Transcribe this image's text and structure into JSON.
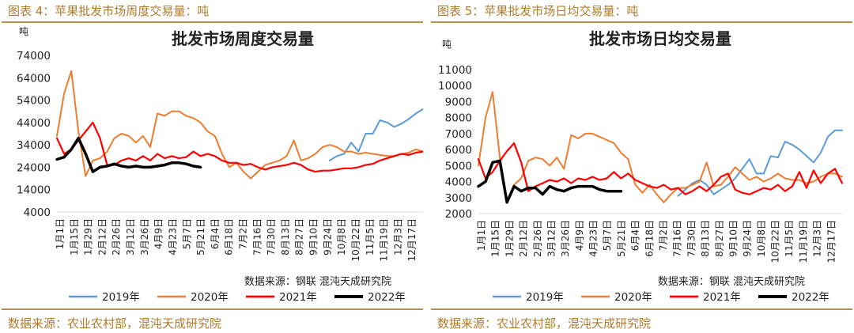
{
  "figures": [
    {
      "caption": "图表 4：苹果批发市场周度交易量：吨",
      "footer_source": "数据来源：农业农村部，混沌天成研究院",
      "inner_source": "数据来源：钢联   混沌天成研究院"
    },
    {
      "caption": "图表 5：苹果批发市场日均交易量：吨",
      "footer_source": "数据来源：农业农村部，混沌天成研究院",
      "inner_source": "数据来源：钢联   混沌天成研究院"
    }
  ],
  "chart_data": [
    {
      "type": "line",
      "title": "批发市场周度交易量",
      "unit_label": "吨",
      "ylim": [
        4000,
        74000
      ],
      "yticks": [
        "4000",
        "14000",
        "24000",
        "34000",
        "44000",
        "54000",
        "64000",
        "74000"
      ],
      "ytick_values": [
        4000,
        14000,
        24000,
        34000,
        44000,
        54000,
        64000,
        74000
      ],
      "xlim": [
        1,
        52
      ],
      "xticks": [
        "1月1日",
        "1月15日",
        "1月29日",
        "2月12日",
        "2月26日",
        "3月12日",
        "3月26日",
        "4月9日",
        "4月23日",
        "5月7日",
        "5月21日",
        "6月4日",
        "6月18日",
        "7月2日",
        "7月16日",
        "7月30日",
        "8月13日",
        "8月27日",
        "9月10日",
        "9月24日",
        "10月8日",
        "10月22日",
        "11月5日",
        "11月19日",
        "12月3日",
        "12月17日"
      ],
      "grid": false,
      "legend_position": "bottom",
      "series": [
        {
          "name": "2019年",
          "color": "#5b9bd5",
          "width": 2,
          "x": [
            39,
            40,
            41,
            42,
            43,
            44,
            45,
            46,
            47,
            48,
            49,
            50,
            51,
            52
          ],
          "y": [
            27000,
            29000,
            30000,
            35000,
            31000,
            39000,
            39000,
            45000,
            44000,
            42000,
            43500,
            45500,
            48000,
            50000
          ]
        },
        {
          "name": "2020年",
          "color": "#ed7d31",
          "width": 2,
          "x": [
            1,
            2,
            3,
            4,
            5,
            6,
            7,
            8,
            9,
            10,
            11,
            12,
            13,
            14,
            15,
            16,
            17,
            18,
            19,
            20,
            21,
            22,
            23,
            24,
            25,
            26,
            27,
            28,
            29,
            30,
            31,
            32,
            33,
            34,
            35,
            36,
            37,
            38,
            39,
            40,
            41,
            42,
            43,
            44,
            45,
            46,
            47,
            48,
            49,
            50,
            51,
            52
          ],
          "y": [
            38000,
            57000,
            67000,
            40000,
            20000,
            27000,
            28000,
            31000,
            37000,
            39000,
            38000,
            35000,
            38000,
            33000,
            48000,
            47000,
            49000,
            49000,
            47000,
            46000,
            44000,
            40000,
            38000,
            30000,
            24000,
            26000,
            22000,
            19000,
            22000,
            25000,
            26000,
            27000,
            29000,
            36000,
            27000,
            28000,
            30000,
            33000,
            34000,
            33000,
            31000,
            31000,
            30000,
            30500,
            30000,
            29500,
            29000,
            29000,
            30000,
            30500,
            32000,
            31000
          ]
        },
        {
          "name": "2021年",
          "color": "#ff0000",
          "width": 2.2,
          "x": [
            1,
            2,
            3,
            4,
            5,
            6,
            7,
            8,
            9,
            10,
            11,
            12,
            13,
            14,
            15,
            16,
            17,
            18,
            19,
            20,
            21,
            22,
            23,
            24,
            25,
            26,
            27,
            28,
            29,
            30,
            31,
            32,
            33,
            34,
            35,
            36,
            37,
            38,
            39,
            40,
            41,
            42,
            43,
            44,
            45,
            46,
            47,
            48,
            49,
            50,
            51,
            52
          ],
          "y": [
            37000,
            30000,
            32000,
            36000,
            40000,
            44000,
            37000,
            25000,
            25000,
            27000,
            28000,
            27000,
            29000,
            27000,
            30000,
            28000,
            29000,
            28000,
            28500,
            31000,
            29000,
            30000,
            29000,
            27000,
            26000,
            26000,
            25000,
            25500,
            24000,
            23000,
            24000,
            24500,
            25000,
            26000,
            25000,
            23000,
            22000,
            22500,
            22500,
            23000,
            23500,
            23500,
            24000,
            25000,
            25500,
            27000,
            28000,
            29000,
            30000,
            29500,
            30500,
            31000
          ]
        },
        {
          "name": "2022年",
          "color": "#000000",
          "width": 3.5,
          "x": [
            1,
            2,
            3,
            4,
            5,
            6,
            7,
            8,
            9,
            10,
            11,
            12,
            13,
            14,
            15,
            16,
            17,
            18,
            19,
            20,
            21
          ],
          "y": [
            27500,
            28500,
            32000,
            37000,
            30000,
            22000,
            24000,
            24500,
            25500,
            24500,
            24000,
            24500,
            24000,
            24000,
            24500,
            25000,
            26000,
            26000,
            25500,
            24500,
            24000
          ]
        }
      ]
    },
    {
      "type": "line",
      "title": "批发市场日均交易量",
      "unit_label": "吨",
      "ylim": [
        2000,
        11000
      ],
      "yticks": [
        "2000",
        "3000",
        "4000",
        "5000",
        "6000",
        "7000",
        "8000",
        "9000",
        "10000",
        "11000"
      ],
      "ytick_values": [
        2000,
        3000,
        4000,
        5000,
        6000,
        7000,
        8000,
        9000,
        10000,
        11000
      ],
      "xlim": [
        1,
        52
      ],
      "xticks": [
        "1月1日",
        "1月15日",
        "1月29日",
        "2月12日",
        "2月26日",
        "3月12日",
        "3月26日",
        "4月9日",
        "4月23日",
        "5月7日",
        "5月21日",
        "6月4日",
        "6月18日",
        "7月2日",
        "7月16日",
        "7月30日",
        "8月13日",
        "8月27日",
        "9月10日",
        "9月24日",
        "10月8日",
        "10月22日",
        "11月5日",
        "11月19日",
        "12月3日",
        "12月17日"
      ],
      "grid": false,
      "legend_position": "bottom",
      "series": [
        {
          "name": "2019年",
          "color": "#5b9bd5",
          "width": 2,
          "x": [
            29,
            30,
            31,
            32,
            33,
            34,
            35,
            36,
            37,
            38,
            39,
            40,
            41,
            42,
            43,
            44,
            45,
            46,
            47,
            48,
            49,
            50,
            51,
            52
          ],
          "y": [
            3100,
            3500,
            3900,
            4100,
            3800,
            3200,
            3500,
            3800,
            4200,
            4800,
            5400,
            4500,
            4500,
            5600,
            5500,
            6500,
            6300,
            6000,
            5600,
            5200,
            5800,
            6800,
            7200,
            7200
          ]
        },
        {
          "name": "2020年",
          "color": "#ed7d31",
          "width": 2,
          "x": [
            1,
            2,
            3,
            4,
            5,
            6,
            7,
            8,
            9,
            10,
            11,
            12,
            13,
            14,
            15,
            16,
            17,
            18,
            19,
            20,
            21,
            22,
            23,
            24,
            25,
            26,
            27,
            28,
            29,
            30,
            31,
            32,
            33,
            34,
            35,
            36,
            37,
            38,
            39,
            40,
            41,
            42,
            43,
            44,
            45,
            46,
            47,
            48,
            49,
            50,
            51,
            52
          ],
          "y": [
            5000,
            8000,
            9600,
            5500,
            2800,
            3800,
            4200,
            5300,
            5500,
            5400,
            5000,
            5500,
            4800,
            6900,
            6700,
            7000,
            7000,
            6800,
            6600,
            6400,
            5800,
            5400,
            3800,
            3300,
            3800,
            3200,
            2700,
            3200,
            3600,
            3600,
            3800,
            4000,
            5200,
            3700,
            3800,
            4300,
            4900,
            4500,
            4100,
            4300,
            4000,
            4200,
            4500,
            4200,
            4100,
            4100,
            3900,
            4000,
            4300,
            4500,
            4500,
            4300
          ]
        },
        {
          "name": "2021年",
          "color": "#ff0000",
          "width": 2.2,
          "x": [
            1,
            2,
            3,
            4,
            5,
            6,
            7,
            8,
            9,
            10,
            11,
            12,
            13,
            14,
            15,
            16,
            17,
            18,
            19,
            20,
            21,
            22,
            23,
            24,
            25,
            26,
            27,
            28,
            29,
            30,
            31,
            32,
            33,
            34,
            35,
            36,
            37,
            38,
            39,
            40,
            41,
            42,
            43,
            44,
            45,
            46,
            47,
            48,
            49,
            50,
            51,
            52
          ],
          "y": [
            5400,
            4200,
            4600,
            5300,
            5900,
            6400,
            5200,
            3400,
            3700,
            3900,
            4100,
            4000,
            4200,
            3900,
            4200,
            4100,
            4300,
            4100,
            4200,
            4600,
            4200,
            4500,
            4100,
            3900,
            3700,
            3600,
            3800,
            3500,
            3600,
            3200,
            3400,
            3700,
            3400,
            3800,
            4300,
            4500,
            3500,
            3300,
            3200,
            3400,
            3600,
            3500,
            3800,
            3400,
            3700,
            4600,
            3600,
            4700,
            3900,
            4500,
            4800,
            3900
          ]
        },
        {
          "name": "2022年",
          "color": "#000000",
          "width": 3.5,
          "x": [
            1,
            2,
            3,
            4,
            5,
            6,
            7,
            8,
            9,
            10,
            11,
            12,
            13,
            14,
            15,
            16,
            17,
            18,
            19,
            20,
            21
          ],
          "y": [
            3700,
            4000,
            5200,
            5300,
            2700,
            3700,
            3400,
            3600,
            3600,
            3200,
            3700,
            3500,
            3400,
            3600,
            3700,
            3700,
            3700,
            3500,
            3400,
            3400,
            3400
          ]
        }
      ]
    }
  ]
}
